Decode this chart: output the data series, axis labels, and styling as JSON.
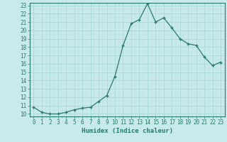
{
  "x": [
    0,
    1,
    2,
    3,
    4,
    5,
    6,
    7,
    8,
    9,
    10,
    11,
    12,
    13,
    14,
    15,
    16,
    17,
    18,
    19,
    20,
    21,
    22,
    23
  ],
  "y": [
    10.8,
    10.2,
    10.0,
    10.0,
    10.2,
    10.5,
    10.7,
    10.8,
    11.5,
    12.2,
    14.5,
    18.2,
    20.8,
    21.3,
    23.2,
    21.0,
    21.5,
    20.3,
    19.0,
    18.4,
    18.2,
    16.8,
    15.8,
    16.2
  ],
  "line_color": "#2a7a6a",
  "bg_color": "#c8eaea",
  "grid_color": "#b0d8d8",
  "xlabel": "Humidex (Indice chaleur)",
  "ylim": [
    10,
    23
  ],
  "xlim": [
    0,
    23
  ],
  "yticks": [
    10,
    11,
    12,
    13,
    14,
    15,
    16,
    17,
    18,
    19,
    20,
    21,
    22,
    23
  ],
  "xticks": [
    0,
    1,
    2,
    3,
    4,
    5,
    6,
    7,
    8,
    9,
    10,
    11,
    12,
    13,
    14,
    15,
    16,
    17,
    18,
    19,
    20,
    21,
    22,
    23
  ],
  "tick_label_fontsize": 5.5,
  "xlabel_fontsize": 6.5,
  "marker": "+",
  "markersize": 3.5,
  "linewidth": 0.9
}
